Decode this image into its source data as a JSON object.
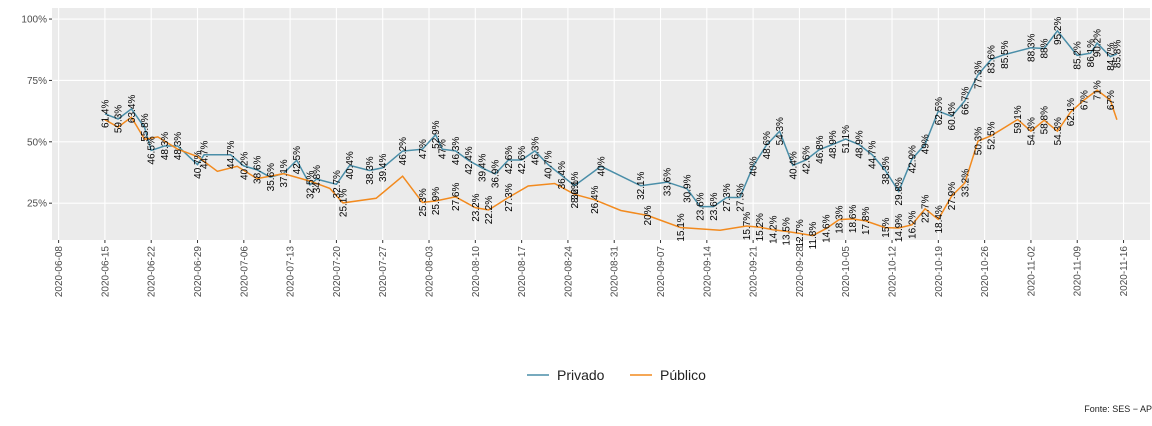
{
  "chart_data": {
    "type": "line",
    "xlim": [
      "2020-06-07",
      "2020-11-20"
    ],
    "xticks": [
      "2020-06-08",
      "2020-06-15",
      "2020-06-22",
      "2020-06-29",
      "2020-07-06",
      "2020-07-13",
      "2020-07-20",
      "2020-07-27",
      "2020-08-03",
      "2020-08-10",
      "2020-08-17",
      "2020-08-24",
      "2020-08-31",
      "2020-09-07",
      "2020-09-14",
      "2020-09-21",
      "2020-09-28",
      "2020-10-05",
      "2020-10-12",
      "2020-10-19",
      "2020-10-26",
      "2020-11-02",
      "2020-11-09",
      "2020-11-16"
    ],
    "ylim": [
      10,
      104.5
    ],
    "yticks": [
      {
        "value": 25,
        "label": "25%"
      },
      {
        "value": 50,
        "label": "50%"
      },
      {
        "value": 75,
        "label": "75%"
      },
      {
        "value": 100,
        "label": "100%"
      }
    ],
    "grid": true,
    "legend": "bottom",
    "caption": "Fonte: SES − AP",
    "series": [
      {
        "name": "Privado",
        "color": "#4a8ea8",
        "x": [
          "2020-06-15",
          "2020-06-17",
          "2020-06-19",
          "2020-06-21",
          "2020-06-22",
          "2020-06-24",
          "2020-06-26",
          "2020-06-29",
          "2020-06-30",
          "2020-07-04",
          "2020-07-06",
          "2020-07-08",
          "2020-07-10",
          "2020-07-12",
          "2020-07-14",
          "2020-07-16",
          "2020-07-17",
          "2020-07-20",
          "2020-07-22",
          "2020-07-25",
          "2020-07-27",
          "2020-07-30",
          "2020-08-02",
          "2020-08-04",
          "2020-08-05",
          "2020-08-07",
          "2020-08-09",
          "2020-08-11",
          "2020-08-13",
          "2020-08-15",
          "2020-08-17",
          "2020-08-19",
          "2020-08-21",
          "2020-08-23",
          "2020-08-25",
          "2020-08-29",
          "2020-09-04",
          "2020-09-08",
          "2020-09-11",
          "2020-09-13",
          "2020-09-15",
          "2020-09-17",
          "2020-09-19",
          "2020-09-21",
          "2020-09-23",
          "2020-09-25",
          "2020-09-27",
          "2020-09-29",
          "2020-10-01",
          "2020-10-03",
          "2020-10-05",
          "2020-10-07",
          "2020-10-09",
          "2020-10-11",
          "2020-10-13",
          "2020-10-15",
          "2020-10-17",
          "2020-10-19",
          "2020-10-21",
          "2020-10-23",
          "2020-10-25",
          "2020-10-27",
          "2020-10-29",
          "2020-11-02",
          "2020-11-04",
          "2020-11-06",
          "2020-11-09",
          "2020-11-11",
          "2020-11-12",
          "2020-11-14",
          "2020-11-15"
        ],
        "values": [
          61.4,
          59.3,
          63.4,
          55.8,
          46.5,
          48.3,
          48.3,
          40.7,
          44.7,
          44.7,
          40.2,
          38.6,
          35.6,
          37.1,
          42.5,
          32.5,
          34.8,
          32.7,
          40.4,
          38.3,
          39.4,
          46.2,
          47,
          52.9,
          47,
          46.3,
          42.4,
          39.4,
          36.9,
          42.6,
          42.6,
          46.3,
          40.7,
          36.4,
          32.1,
          40,
          32.1,
          33.6,
          30.9,
          23.6,
          23.6,
          27.3,
          27.3,
          40,
          48.6,
          54.3,
          40.4,
          42.6,
          46.8,
          48.9,
          51.1,
          48.9,
          44.7,
          38.3,
          29.8,
          42.9,
          49,
          62.5,
          60.4,
          66.7,
          77.3,
          83.6,
          85.5,
          88.3,
          88,
          95.2,
          85.2,
          86.1,
          90.2,
          84.7,
          85.8
        ],
        "value_labels": [
          "61.4%",
          "59.3%",
          "63.4%",
          "55.8%",
          "46.5%",
          "48.3%",
          "48.3%",
          "40.7%",
          "44.7%",
          "44.7%",
          "40.2%",
          "38.6%",
          "35.6%",
          "37.1%",
          "42.5%",
          "32.5%",
          "34.8%",
          "32.7%",
          "40.4%",
          "38.3%",
          "39.4%",
          "46.2%",
          "47%",
          "52.9%",
          "47%",
          "46.3%",
          "42.4%",
          "39.4%",
          "36.9%",
          "42.6%",
          "42.6%",
          "46.3%",
          "40.7%",
          "36.4%",
          "32.1%",
          "40%",
          "32.1%",
          "33.6%",
          "30.9%",
          "23.6%",
          "23.6%",
          "27.3%",
          "27.3%",
          "40%",
          "48.6%",
          "54.3%",
          "40.4%",
          "42.6%",
          "46.8%",
          "48.9%",
          "51.1%",
          "48.9%",
          "44.7%",
          "38.3%",
          "29.8%",
          "42.9%",
          "49%",
          "62.5%",
          "60.4%",
          "66.7%",
          "77.3%",
          "83.6%",
          "85.5%",
          "88.3%",
          "88%",
          "95.2%",
          "85.2%",
          "86.1%",
          "90.2%",
          "84.7%",
          "85.8%"
        ]
      },
      {
        "name": "Público",
        "color": "#f28a1e",
        "x": [
          "2020-06-15",
          "2020-06-17",
          "2020-06-19",
          "2020-06-21",
          "2020-06-23",
          "2020-06-26",
          "2020-06-29",
          "2020-07-02",
          "2020-07-05",
          "2020-07-08",
          "2020-07-12",
          "2020-07-16",
          "2020-07-19",
          "2020-07-21",
          "2020-07-26",
          "2020-07-30",
          "2020-08-02",
          "2020-08-04",
          "2020-08-07",
          "2020-08-10",
          "2020-08-12",
          "2020-08-15",
          "2020-08-18",
          "2020-08-22",
          "2020-08-25",
          "2020-08-28",
          "2020-09-01",
          "2020-09-05",
          "2020-09-10",
          "2020-09-16",
          "2020-09-20",
          "2020-09-22",
          "2020-09-24",
          "2020-09-26",
          "2020-09-28",
          "2020-09-30",
          "2020-10-02",
          "2020-10-04",
          "2020-10-06",
          "2020-10-08",
          "2020-10-11",
          "2020-10-13",
          "2020-10-15",
          "2020-10-17",
          "2020-10-19",
          "2020-10-21",
          "2020-10-23",
          "2020-10-25",
          "2020-10-27",
          "2020-10-31",
          "2020-11-02",
          "2020-11-04",
          "2020-11-06",
          "2020-11-08",
          "2020-11-10",
          "2020-11-12",
          "2020-11-14",
          "2020-11-15"
        ],
        "values": [
          59,
          56,
          60,
          51,
          52,
          47,
          44,
          38,
          40,
          35,
          37,
          34,
          31,
          25.1,
          27,
          36,
          25.3,
          25.9,
          27.6,
          23.2,
          22.2,
          27.3,
          32,
          33,
          28.6,
          26.4,
          22,
          20,
          15.1,
          14,
          15.7,
          15.2,
          14.2,
          13.5,
          12.7,
          11.8,
          14.6,
          18.3,
          18.6,
          17.8,
          15,
          14.9,
          16.2,
          22.7,
          18.4,
          27.9,
          33.2,
          50.3,
          52.5,
          59.1,
          54.3,
          58.8,
          54.3,
          62.1,
          67,
          71,
          67,
          59
        ],
        "value_labels": [
          null,
          null,
          null,
          null,
          null,
          null,
          null,
          null,
          null,
          null,
          null,
          null,
          null,
          "25.1%",
          null,
          null,
          "25.3%",
          "25.9%",
          "27.6%",
          "23.2%",
          "22.2%",
          "27.3%",
          null,
          null,
          "28.6%",
          "26.4%",
          null,
          "20%",
          "15.1%",
          null,
          "15.7%",
          "15.2%",
          "14.2%",
          "13.5%",
          "12.7%",
          "11.8%",
          "14.6%",
          "18.3%",
          "18.6%",
          "17.8%",
          "15%",
          "14.9%",
          "16.2%",
          "22.7%",
          "18.4%",
          "27.9%",
          "33.2%",
          "50.3%",
          "52.5%",
          "59.1%",
          "54.3%",
          "58.8%",
          "54.3%",
          "62.1%",
          "67%",
          "71%",
          "67%",
          null
        ]
      }
    ]
  }
}
